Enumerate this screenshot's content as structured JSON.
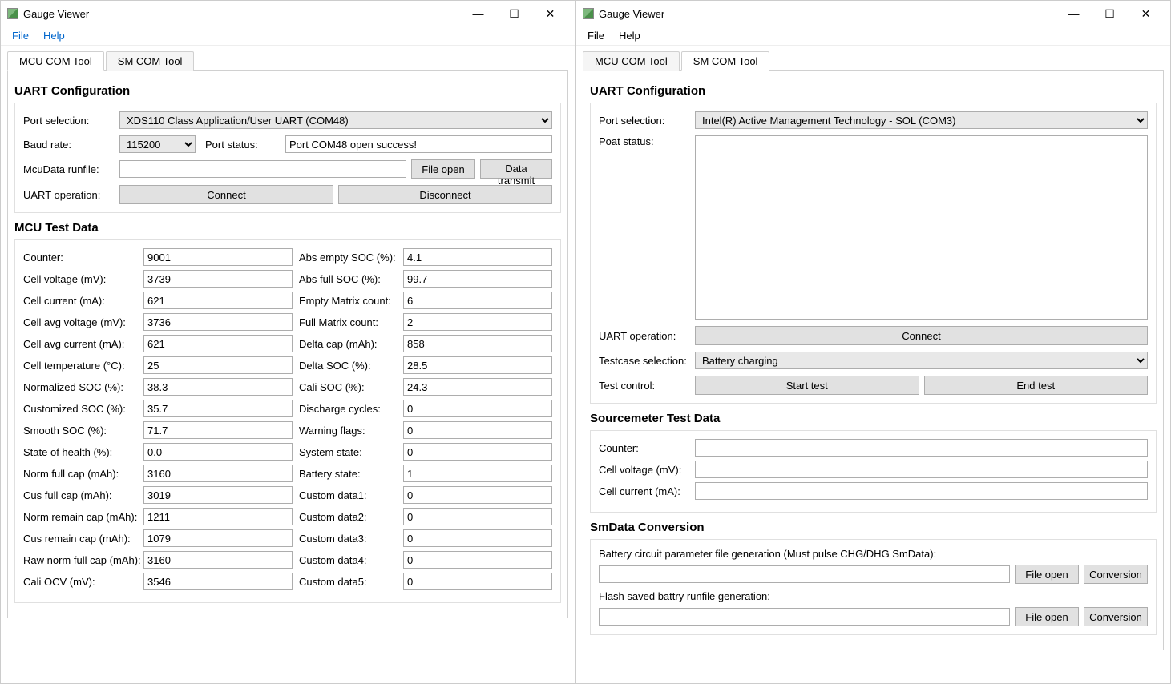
{
  "app": {
    "title": "Gauge Viewer"
  },
  "menu": {
    "file": "File",
    "help": "Help"
  },
  "tabs": {
    "mcu": "MCU COM Tool",
    "sm": "SM COM Tool"
  },
  "mcu": {
    "section_uart": "UART Configuration",
    "port_selection_label": "Port selection:",
    "port_selection_value": "XDS110 Class Application/User UART (COM48)",
    "baud_label": "Baud rate:",
    "baud_value": "115200",
    "port_status_label": "Port status:",
    "port_status_value": "Port COM48 open success!",
    "runfile_label": "McuData runfile:",
    "btn_fileopen": "File open",
    "btn_datatx": "Data transmit",
    "uart_op_label": "UART operation:",
    "btn_connect": "Connect",
    "btn_disconnect": "Disconnect",
    "section_data": "MCU Test Data",
    "left_rows": [
      {
        "label": "Counter:",
        "value": "9001"
      },
      {
        "label": "Cell voltage (mV):",
        "value": "3739"
      },
      {
        "label": "Cell current (mA):",
        "value": "621"
      },
      {
        "label": "Cell avg voltage (mV):",
        "value": "3736"
      },
      {
        "label": "Cell avg current (mA):",
        "value": "621"
      },
      {
        "label": "Cell temperature (°C):",
        "value": "25"
      },
      {
        "label": "Normalized SOC (%):",
        "value": "38.3"
      },
      {
        "label": "Customized SOC (%):",
        "value": "35.7"
      },
      {
        "label": "Smooth SOC (%):",
        "value": "71.7"
      },
      {
        "label": "State of health (%):",
        "value": "0.0"
      },
      {
        "label": "Norm full cap (mAh):",
        "value": "3160"
      },
      {
        "label": "Cus full cap (mAh):",
        "value": "3019"
      },
      {
        "label": "Norm remain cap (mAh):",
        "value": "1211"
      },
      {
        "label": "Cus remain cap (mAh):",
        "value": "1079"
      },
      {
        "label": "Raw norm full cap (mAh):",
        "value": "3160"
      },
      {
        "label": "Cali OCV (mV):",
        "value": "3546"
      }
    ],
    "right_rows": [
      {
        "label": "Abs empty SOC (%):",
        "value": "4.1"
      },
      {
        "label": "Abs full SOC (%):",
        "value": "99.7"
      },
      {
        "label": "Empty Matrix count:",
        "value": "6"
      },
      {
        "label": "Full Matrix count:",
        "value": "2"
      },
      {
        "label": "Delta cap (mAh):",
        "value": "858"
      },
      {
        "label": "Delta SOC (%):",
        "value": "28.5"
      },
      {
        "label": "Cali SOC (%):",
        "value": "24.3"
      },
      {
        "label": "Discharge cycles:",
        "value": "0"
      },
      {
        "label": "Warning flags:",
        "value": "0"
      },
      {
        "label": "System state:",
        "value": "0"
      },
      {
        "label": "Battery state:",
        "value": "1"
      },
      {
        "label": "Custom data1:",
        "value": "0"
      },
      {
        "label": "Custom data2:",
        "value": "0"
      },
      {
        "label": "Custom data3:",
        "value": "0"
      },
      {
        "label": "Custom data4:",
        "value": "0"
      },
      {
        "label": "Custom data5:",
        "value": "0"
      }
    ]
  },
  "sm": {
    "section_uart": "UART Configuration",
    "port_selection_label": "Port selection:",
    "port_selection_value": "Intel(R) Active Management Technology - SOL (COM3)",
    "poat_status_label": "Poat status:",
    "uart_op_label": "UART operation:",
    "btn_connect": "Connect",
    "testcase_label": "Testcase selection:",
    "testcase_value": "Battery charging",
    "testctrl_label": "Test control:",
    "btn_start": "Start test",
    "btn_end": "End test",
    "section_data": "Sourcemeter Test Data",
    "rows": [
      {
        "label": "Counter:",
        "value": ""
      },
      {
        "label": "Cell voltage (mV):",
        "value": ""
      },
      {
        "label": "Cell current (mA):",
        "value": ""
      }
    ],
    "section_conv": "SmData Conversion",
    "conv1_label": "Battery circuit parameter file generation (Must pulse CHG/DHG SmData):",
    "conv2_label": "Flash saved battry runfile generation:",
    "btn_fileopen": "File open",
    "btn_conversion": "Conversion"
  }
}
